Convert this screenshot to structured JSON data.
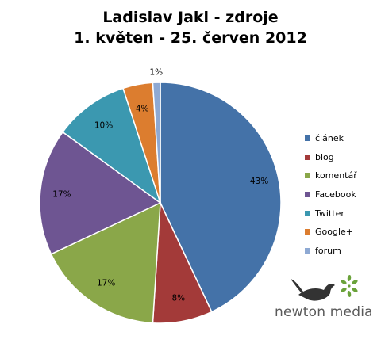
{
  "chart_data": {
    "type": "pie",
    "title": "Ladislav Jakl - zdroje",
    "subtitle": "1. květen - 25. červen 2012",
    "slices": [
      {
        "label": "článek",
        "value": 43,
        "display": "43%",
        "color": "#4472a8"
      },
      {
        "label": "blog",
        "value": 8,
        "display": "8%",
        "color": "#a33a39"
      },
      {
        "label": "komentář",
        "value": 17,
        "display": "17%",
        "color": "#8aa749"
      },
      {
        "label": "Facebook",
        "value": 17,
        "display": "17%",
        "color": "#6e5592"
      },
      {
        "label": "Twitter",
        "value": 10,
        "display": "10%",
        "color": "#3b98b0"
      },
      {
        "label": "Google+",
        "value": 4,
        "display": "4%",
        "color": "#dc7d2f"
      },
      {
        "label": "forum",
        "value": 1,
        "display": "1%",
        "color": "#8ea9d3"
      }
    ],
    "legend_position": "right"
  },
  "logo": {
    "text": "newton media",
    "icon": "bird-with-leaves-icon"
  }
}
